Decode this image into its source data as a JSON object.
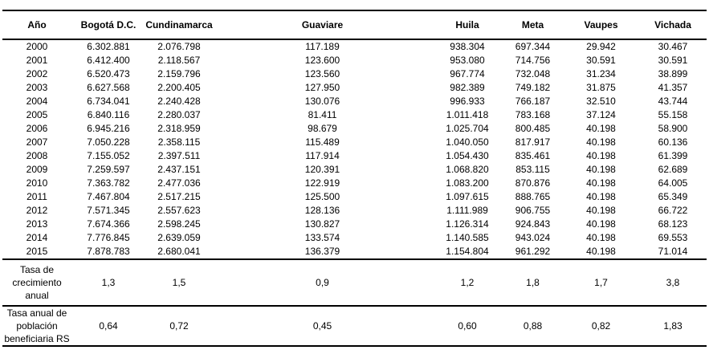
{
  "table": {
    "columns": [
      "Año",
      "Bogotá D.C.",
      "Cundinamarca",
      "Guaviare",
      "Huila",
      "Meta",
      "Vaupes",
      "Vichada"
    ],
    "rows": [
      [
        "2000",
        "6.302.881",
        "2.076.798",
        "117.189",
        "938.304",
        "697.344",
        "29.942",
        "30.467"
      ],
      [
        "2001",
        "6.412.400",
        "2.118.567",
        "123.600",
        "953.080",
        "714.756",
        "30.591",
        "30.591"
      ],
      [
        "2002",
        "6.520.473",
        "2.159.796",
        "123.560",
        "967.774",
        "732.048",
        "31.234",
        "38.899"
      ],
      [
        "2003",
        "6.627.568",
        "2.200.405",
        "127.950",
        "982.389",
        "749.182",
        "31.875",
        "41.357"
      ],
      [
        "2004",
        "6.734.041",
        "2.240.428",
        "130.076",
        "996.933",
        "766.187",
        "32.510",
        "43.744"
      ],
      [
        "2005",
        "6.840.116",
        "2.280.037",
        "81.411",
        "1.011.418",
        "783.168",
        "37.124",
        "55.158"
      ],
      [
        "2006",
        "6.945.216",
        "2.318.959",
        "98.679",
        "1.025.704",
        "800.485",
        "40.198",
        "58.900"
      ],
      [
        "2007",
        "7.050.228",
        "2.358.115",
        "115.489",
        "1.040.050",
        "817.917",
        "40.198",
        "60.136"
      ],
      [
        "2008",
        "7.155.052",
        "2.397.511",
        "117.914",
        "1.054.430",
        "835.461",
        "40.198",
        "61.399"
      ],
      [
        "2009",
        "7.259.597",
        "2.437.151",
        "120.391",
        "1.068.820",
        "853.115",
        "40.198",
        "62.689"
      ],
      [
        "2010",
        "7.363.782",
        "2.477.036",
        "122.919",
        "1.083.200",
        "870.876",
        "40.198",
        "64.005"
      ],
      [
        "2011",
        "7.467.804",
        "2.517.215",
        "125.500",
        "1.097.615",
        "888.765",
        "40.198",
        "65.349"
      ],
      [
        "2012",
        "7.571.345",
        "2.557.623",
        "128.136",
        "1.111.989",
        "906.755",
        "40.198",
        "66.722"
      ],
      [
        "2013",
        "7.674.366",
        "2.598.245",
        "130.827",
        "1.126.314",
        "924.843",
        "40.198",
        "68.123"
      ],
      [
        "2014",
        "7.776.845",
        "2.639.059",
        "133.574",
        "1.140.585",
        "943.024",
        "40.198",
        "69.553"
      ],
      [
        "2015",
        "7.878.783",
        "2.680.041",
        "136.379",
        "1.154.804",
        "961.292",
        "40.198",
        "71.014"
      ]
    ],
    "summary_rows": [
      {
        "label": "Tasa de crecimiento anual",
        "values": [
          "1,3",
          "1,5",
          "0,9",
          "1,2",
          "1,8",
          "1,7",
          "3,8"
        ]
      },
      {
        "label": "Tasa anual de población beneficiaria RS",
        "values": [
          "0,64",
          "0,72",
          "0,45",
          "0,60",
          "0,88",
          "0,82",
          "1,83"
        ]
      }
    ],
    "text_color": "#000000",
    "border_color": "#000000"
  }
}
